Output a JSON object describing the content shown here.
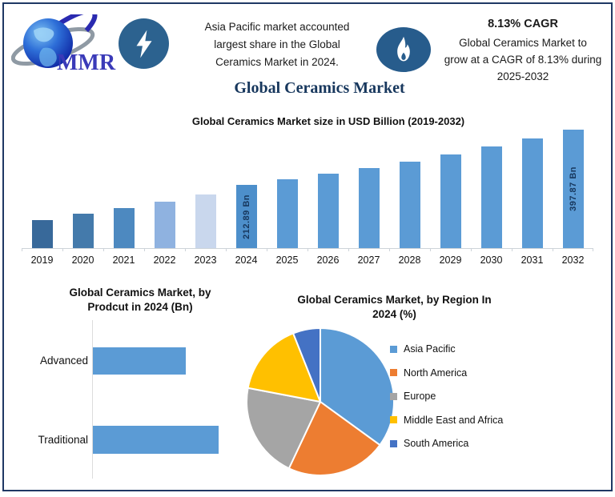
{
  "frame": {
    "border_color": "#1f3864",
    "background": "#ffffff"
  },
  "header": {
    "logo_text": "MMR",
    "lightning_badge_color": "#2c628f",
    "flame_badge_color": "#275c8c",
    "callout": {
      "line1": "Asia Pacific market accounted",
      "line2": "largest share in the Global",
      "line3": "Ceramics Market in 2024."
    },
    "cagr": {
      "title": "8.13% CAGR",
      "line1": "Global Ceramics Market to",
      "line2": "grow at a CAGR of 8.13% during",
      "line3": "2025-2032"
    }
  },
  "main_title": "Global Ceramics Market",
  "chart_data": [
    {
      "type": "bar",
      "title": "Global Ceramics Market size in USD Billion (2019-2032)",
      "categories": [
        "2019",
        "2020",
        "2021",
        "2022",
        "2023",
        "2024",
        "2025",
        "2026",
        "2027",
        "2028",
        "2029",
        "2030",
        "2031",
        "2032"
      ],
      "values": [
        95,
        115,
        135,
        155,
        180,
        212.89,
        230.2,
        248.92,
        269.16,
        291.04,
        314.7,
        340.29,
        367.96,
        397.87
      ],
      "data_labels": [
        "",
        "",
        "",
        "",
        "",
        "212.89 Bn",
        "",
        "",
        "",
        "",
        "",
        "",
        "",
        "397.87 Bn"
      ],
      "bar_colors": [
        "#38699a",
        "#447aab",
        "#4d89c0",
        "#8fb2e0",
        "#c9d7ed",
        "#4d8fcb",
        "#5b9bd5",
        "#5b9bd5",
        "#5b9bd5",
        "#5b9bd5",
        "#5b9bd5",
        "#5b9bd5",
        "#5b9bd5",
        "#5b9bd5"
      ],
      "ylabel": "USD Billion",
      "xlabel": "",
      "ylim": [
        0,
        400
      ],
      "grid": false
    },
    {
      "type": "bar",
      "orientation": "horizontal",
      "title_line1": "Global Ceramics Market, by",
      "title_line2": "Prodcut in 2024 (Bn)",
      "categories": [
        "Advanced",
        "Traditional"
      ],
      "values": [
        90,
        122
      ],
      "bar_color": "#5b9bd5",
      "xlim": [
        0,
        130
      ],
      "grid": false
    },
    {
      "type": "pie",
      "title_line1": "Global Ceramics Market, by Region In",
      "title_line2": "2024 (%)",
      "labels": [
        "Asia Pacific",
        "North America",
        "Europe",
        "Middle East and Africa",
        "South America"
      ],
      "values": [
        35,
        22,
        21,
        16,
        6
      ],
      "colors": [
        "#5b9bd5",
        "#ed7d31",
        "#a5a5a5",
        "#ffc000",
        "#4472c4"
      ],
      "start_angle_deg": 0,
      "legend_position": "right"
    }
  ]
}
